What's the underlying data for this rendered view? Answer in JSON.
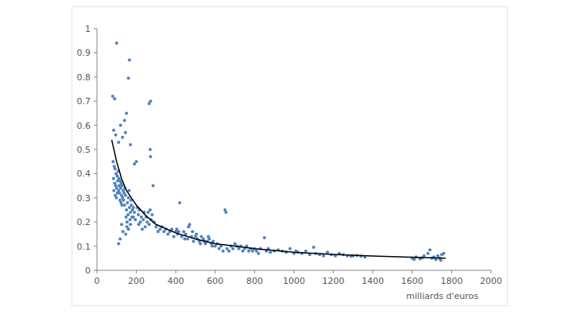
{
  "chart_data": {
    "type": "scatter",
    "x_label": "milliards d'euros",
    "xlim": [
      0,
      2000
    ],
    "xticks": [
      0,
      200,
      400,
      600,
      800,
      1000,
      1200,
      1400,
      1600,
      1800,
      2000
    ],
    "ylim": [
      0,
      1
    ],
    "yticks": [
      0,
      0.1,
      0.2,
      0.3,
      0.4,
      0.5,
      0.6,
      0.7,
      0.8,
      0.9,
      1
    ],
    "grid": false,
    "series": [
      {
        "type": "scatter",
        "color": "#4f81bd",
        "marker": "circle",
        "x": [
          100,
          165,
          160,
          80,
          90,
          265,
          272,
          150,
          140,
          120,
          85,
          95,
          130,
          145,
          110,
          170,
          270,
          272,
          200,
          190,
          82,
          88,
          92,
          97,
          103,
          108,
          112,
          118,
          123,
          128,
          84,
          90,
          95,
          100,
          105,
          110,
          115,
          120,
          125,
          130,
          86,
          93,
          99,
          104,
          113,
          117,
          122,
          127,
          133,
          138,
          135,
          140,
          145,
          150,
          155,
          160,
          165,
          170,
          175,
          180,
          142,
          148,
          153,
          158,
          163,
          168,
          173,
          178,
          185,
          190,
          110,
          118,
          125,
          132,
          146,
          152,
          160,
          170,
          185,
          195,
          205,
          210,
          215,
          225,
          235,
          245,
          255,
          260,
          270,
          280,
          212,
          220,
          230,
          240,
          250,
          265,
          275,
          285,
          290,
          300,
          310,
          320,
          330,
          340,
          350,
          360,
          370,
          380,
          390,
          400,
          410,
          420,
          430,
          440,
          450,
          460,
          470,
          480,
          490,
          500,
          510,
          520,
          530,
          540,
          550,
          560,
          570,
          580,
          590,
          600,
          405,
          415,
          445,
          465,
          485,
          505,
          525,
          545,
          565,
          585,
          610,
          620,
          630,
          640,
          650,
          655,
          660,
          670,
          680,
          690,
          700,
          710,
          720,
          730,
          740,
          750,
          760,
          770,
          780,
          790,
          800,
          810,
          820,
          830,
          850,
          860,
          870,
          880,
          900,
          920,
          940,
          960,
          980,
          1000,
          1010,
          1020,
          1040,
          1060,
          1080,
          1100,
          1110,
          1130,
          1150,
          1170,
          1190,
          1210,
          1230,
          1250,
          1270,
          1290,
          1300,
          1320,
          1340,
          1360,
          1600,
          1620,
          1640,
          1660,
          1680,
          1700,
          1710,
          1720,
          1730,
          1740,
          1750,
          1760,
          1610,
          1650,
          1690,
          1745
        ],
        "values": [
          0.94,
          0.87,
          0.795,
          0.72,
          0.71,
          0.69,
          0.7,
          0.65,
          0.62,
          0.6,
          0.58,
          0.56,
          0.55,
          0.57,
          0.53,
          0.52,
          0.5,
          0.47,
          0.45,
          0.44,
          0.45,
          0.43,
          0.42,
          0.4,
          0.39,
          0.41,
          0.38,
          0.37,
          0.36,
          0.35,
          0.38,
          0.36,
          0.35,
          0.34,
          0.37,
          0.33,
          0.32,
          0.34,
          0.31,
          0.3,
          0.33,
          0.31,
          0.3,
          0.32,
          0.35,
          0.29,
          0.28,
          0.27,
          0.33,
          0.32,
          0.29,
          0.27,
          0.31,
          0.25,
          0.28,
          0.3,
          0.26,
          0.24,
          0.27,
          0.25,
          0.34,
          0.22,
          0.2,
          0.23,
          0.33,
          0.21,
          0.29,
          0.22,
          0.26,
          0.24,
          0.11,
          0.13,
          0.19,
          0.16,
          0.15,
          0.18,
          0.17,
          0.19,
          0.22,
          0.21,
          0.26,
          0.23,
          0.25,
          0.22,
          0.21,
          0.18,
          0.2,
          0.24,
          0.25,
          0.23,
          0.19,
          0.2,
          0.17,
          0.24,
          0.22,
          0.19,
          0.21,
          0.35,
          0.2,
          0.18,
          0.16,
          0.17,
          0.18,
          0.16,
          0.17,
          0.15,
          0.16,
          0.17,
          0.14,
          0.16,
          0.15,
          0.28,
          0.14,
          0.16,
          0.15,
          0.13,
          0.19,
          0.14,
          0.12,
          0.14,
          0.13,
          0.12,
          0.14,
          0.13,
          0.11,
          0.12,
          0.13,
          0.11,
          0.12,
          0.1,
          0.17,
          0.16,
          0.13,
          0.18,
          0.16,
          0.15,
          0.11,
          0.12,
          0.14,
          0.1,
          0.11,
          0.09,
          0.1,
          0.08,
          0.25,
          0.24,
          0.09,
          0.08,
          0.1,
          0.09,
          0.11,
          0.1,
          0.09,
          0.1,
          0.08,
          0.09,
          0.1,
          0.08,
          0.09,
          0.08,
          0.09,
          0.08,
          0.07,
          0.09,
          0.135,
          0.08,
          0.09,
          0.075,
          0.08,
          0.085,
          0.08,
          0.075,
          0.09,
          0.07,
          0.08,
          0.075,
          0.07,
          0.08,
          0.065,
          0.095,
          0.07,
          0.065,
          0.06,
          0.075,
          0.065,
          0.06,
          0.07,
          0.065,
          0.06,
          0.058,
          0.06,
          0.062,
          0.058,
          0.055,
          0.05,
          0.055,
          0.048,
          0.06,
          0.07,
          0.05,
          0.055,
          0.045,
          0.06,
          0.05,
          0.065,
          0.07,
          0.045,
          0.052,
          0.085,
          0.042
        ]
      },
      {
        "type": "line",
        "color": "#000000",
        "line_style": "solid",
        "x": [
          75,
          100,
          125,
          150,
          175,
          200,
          250,
          300,
          400,
          500,
          600,
          700,
          800,
          1000,
          1200,
          1400,
          1600,
          1770
        ],
        "values": [
          0.54,
          0.45,
          0.38,
          0.33,
          0.3,
          0.27,
          0.225,
          0.19,
          0.155,
          0.13,
          0.11,
          0.1,
          0.09,
          0.075,
          0.066,
          0.059,
          0.054,
          0.05
        ]
      }
    ]
  }
}
